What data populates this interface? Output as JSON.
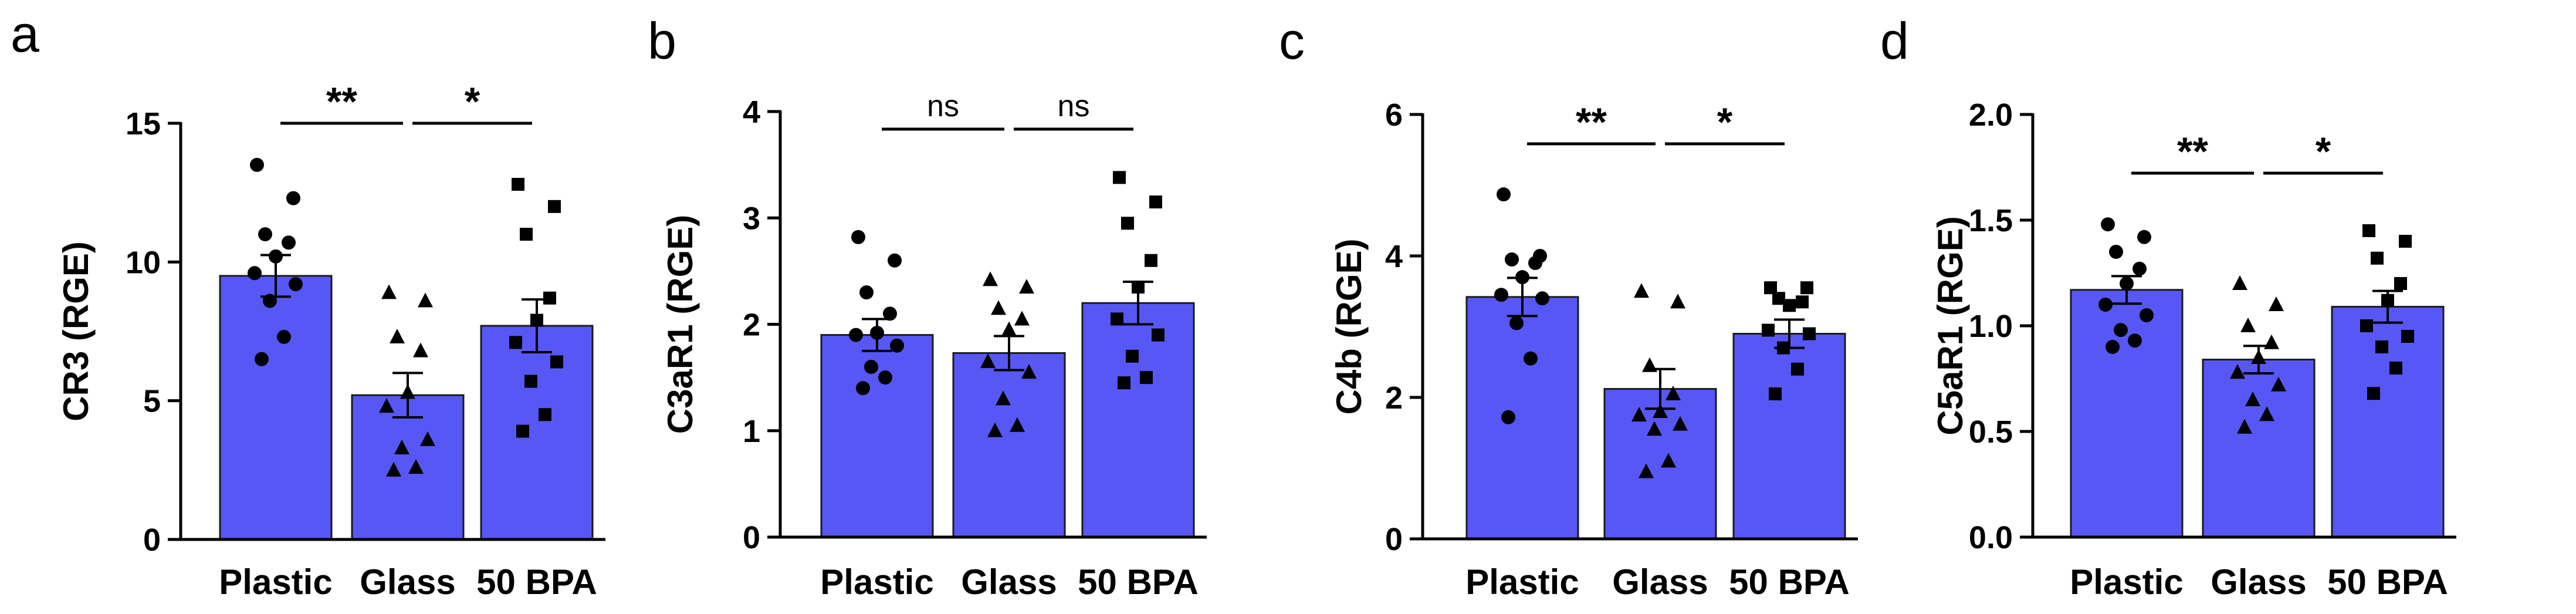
{
  "colors": {
    "bar": "#5757f6",
    "ink": "#000000"
  },
  "chart_data": [
    {
      "type": "bar",
      "panel": "a",
      "ylabel": "CR3 (RGE)",
      "categories": [
        "Plastic",
        "Glass",
        "50 BPA"
      ],
      "values": [
        9.5,
        5.2,
        7.7
      ],
      "sem": [
        0.75,
        0.8,
        0.95
      ],
      "ylim": [
        0,
        15
      ],
      "yticks": [
        0,
        5,
        10,
        15
      ],
      "ytick_labels": [
        "0",
        "5",
        "10",
        "15"
      ],
      "markers": [
        "circle",
        "triangle",
        "square"
      ],
      "points": [
        [
          13.5,
          12.3,
          11.0,
          10.7,
          10.2,
          9.6,
          9.2,
          8.6,
          7.3,
          6.5
        ],
        [
          8.9,
          8.6,
          7.3,
          6.8,
          5.3,
          4.8,
          3.6,
          3.3,
          2.6,
          2.5
        ],
        [
          12.8,
          12.0,
          11.0,
          8.7,
          7.9,
          7.1,
          6.4,
          5.7,
          4.5,
          3.9
        ]
      ],
      "comparisons": [
        {
          "from": 0,
          "to": 1,
          "label": "**"
        },
        {
          "from": 1,
          "to": 2,
          "label": "*"
        }
      ]
    },
    {
      "type": "bar",
      "panel": "b",
      "ylabel": "C3aR1 (RGE)",
      "categories": [
        "Plastic",
        "Glass",
        "50 BPA"
      ],
      "values": [
        1.9,
        1.73,
        2.2
      ],
      "sem": [
        0.15,
        0.16,
        0.2
      ],
      "ylim": [
        0,
        4
      ],
      "yticks": [
        0,
        1,
        2,
        3,
        4
      ],
      "ytick_labels": [
        "0",
        "1",
        "2",
        "3",
        "4"
      ],
      "markers": [
        "circle",
        "triangle",
        "square"
      ],
      "points": [
        [
          2.82,
          2.6,
          2.3,
          2.1,
          1.92,
          1.9,
          1.8,
          1.6,
          1.5,
          1.4
        ],
        [
          2.42,
          2.35,
          2.15,
          2.05,
          1.95,
          1.65,
          1.55,
          1.3,
          1.05,
          1.0
        ],
        [
          3.38,
          3.15,
          2.95,
          2.6,
          2.35,
          2.05,
          1.9,
          1.7,
          1.5,
          1.45
        ]
      ],
      "comparisons": [
        {
          "from": 0,
          "to": 1,
          "label": "ns"
        },
        {
          "from": 1,
          "to": 2,
          "label": "ns"
        }
      ]
    },
    {
      "type": "bar",
      "panel": "c",
      "ylabel": "C4b (RGE)",
      "categories": [
        "Plastic",
        "Glass",
        "50 BPA"
      ],
      "values": [
        3.42,
        2.12,
        2.9
      ],
      "sem": [
        0.27,
        0.28,
        0.2
      ],
      "ylim": [
        0,
        6
      ],
      "yticks": [
        0,
        2,
        4,
        6
      ],
      "ytick_labels": [
        "0",
        "2",
        "4",
        "6"
      ],
      "markers": [
        "circle",
        "triangle",
        "square"
      ],
      "points": [
        [
          4.87,
          4.0,
          3.95,
          3.9,
          3.7,
          3.45,
          3.4,
          3.05,
          2.55,
          1.72
        ],
        [
          3.5,
          3.35,
          2.45,
          2.05,
          1.8,
          1.75,
          1.62,
          1.55,
          1.1,
          0.95
        ],
        [
          3.55,
          3.55,
          3.4,
          3.35,
          3.3,
          2.95,
          2.9,
          2.7,
          2.4,
          2.05
        ]
      ],
      "comparisons": [
        {
          "from": 0,
          "to": 1,
          "label": "**"
        },
        {
          "from": 1,
          "to": 2,
          "label": "*"
        }
      ]
    },
    {
      "type": "bar",
      "panel": "d",
      "ylabel": "C5aR1 (RGE)",
      "categories": [
        "Plastic",
        "Glass",
        "50 BPA"
      ],
      "values": [
        1.17,
        0.84,
        1.09
      ],
      "sem": [
        0.065,
        0.065,
        0.075
      ],
      "ylim": [
        0,
        2
      ],
      "yticks": [
        0,
        0.5,
        1,
        1.5,
        2
      ],
      "ytick_labels": [
        "0.0",
        "0.5",
        "1.0",
        "1.5",
        "2.0"
      ],
      "markers": [
        "circle",
        "triangle",
        "square"
      ],
      "points": [
        [
          1.48,
          1.42,
          1.35,
          1.27,
          1.2,
          1.1,
          1.05,
          0.98,
          0.93,
          0.9
        ],
        [
          1.2,
          1.1,
          1.0,
          0.92,
          0.85,
          0.78,
          0.72,
          0.65,
          0.58,
          0.52
        ],
        [
          1.45,
          1.4,
          1.32,
          1.2,
          1.12,
          1.0,
          0.95,
          0.9,
          0.8,
          0.68
        ]
      ],
      "comparisons": [
        {
          "from": 0,
          "to": 1,
          "label": "**"
        },
        {
          "from": 1,
          "to": 2,
          "label": "*"
        }
      ]
    }
  ]
}
